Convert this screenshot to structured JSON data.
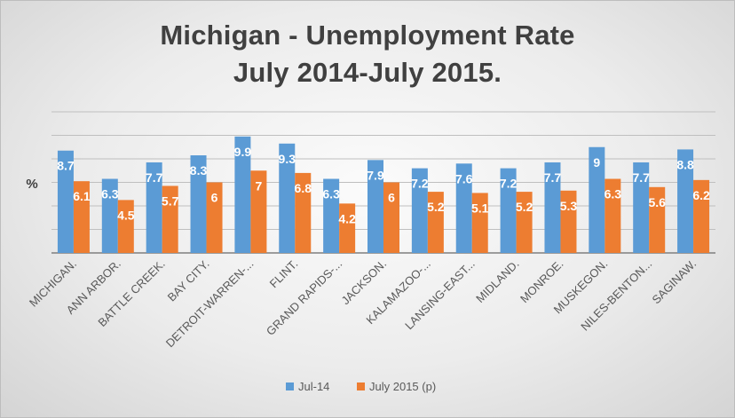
{
  "chart_data": {
    "type": "bar",
    "title_line1": "Michigan - Unemployment Rate",
    "title_line2": "July 2014-July 2015.",
    "ylabel": "%",
    "ylim": [
      0,
      12
    ],
    "grid": true,
    "legend_position": "bottom",
    "categories": [
      "MICHIGAN.",
      "ANN ARBOR.",
      "BATTLE CREEK.",
      "BAY CITY.",
      "DETROIT-WARREN-...",
      "FLINT.",
      "GRAND RAPIDS-...",
      "JACKSON.",
      "KALAMAZOO-...",
      "LANSING-EAST...",
      "MIDLAND.",
      "MONROE.",
      "MUSKEGON.",
      "NILES-BENTON...",
      "SAGINAW."
    ],
    "series": [
      {
        "name": "Jul-14",
        "color": "#5b9bd5",
        "values": [
          8.7,
          6.3,
          7.7,
          8.3,
          9.9,
          9.3,
          6.3,
          7.9,
          7.2,
          7.6,
          7.2,
          7.7,
          9,
          7.7,
          8.8
        ],
        "labels": [
          "8.7",
          "6.3",
          "7.7",
          "8.3",
          "9.9",
          "9.3",
          "6.3",
          "7.9",
          "7.2",
          "7.6",
          "7.2",
          "7.7",
          "9",
          "7.7",
          "8.8"
        ]
      },
      {
        "name": "July 2015 (p)",
        "color": "#ed7d31",
        "values": [
          6.1,
          4.5,
          5.7,
          6,
          7,
          6.8,
          4.2,
          6,
          5.2,
          5.1,
          5.2,
          5.3,
          6.3,
          5.6,
          6.2
        ],
        "labels": [
          "6.1",
          "4.5",
          "5.7",
          "6",
          "7",
          "6.8",
          "4.2",
          "6",
          "5.2",
          "5.1",
          "5.2",
          "5.3",
          "6.3",
          "5.6",
          "6.2"
        ]
      }
    ]
  }
}
